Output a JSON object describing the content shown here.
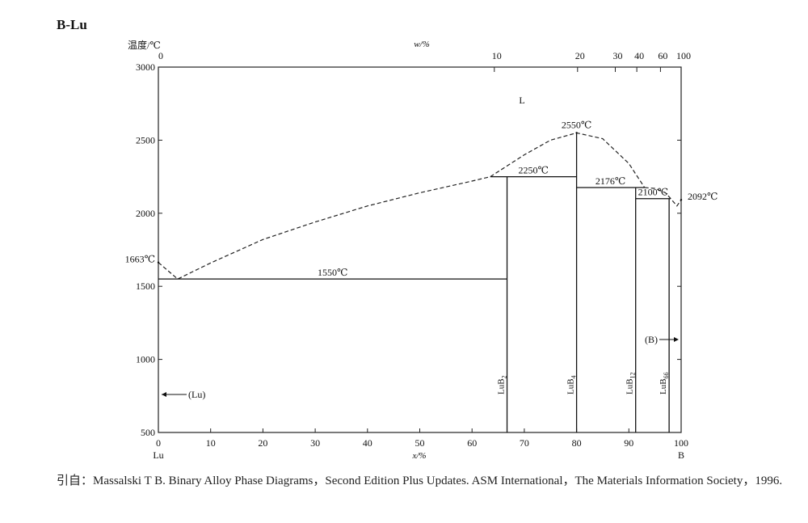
{
  "chart_data": {
    "type": "phase-diagram",
    "title": "B-Lu",
    "ylabel": "温度/℃",
    "xlabel": "x/%",
    "x2label": "w/%",
    "left_element": "Lu",
    "right_element": "B",
    "region_label": "L",
    "xlim": [
      0,
      100
    ],
    "ylim": [
      500,
      3000
    ],
    "xticks": [
      0,
      10,
      20,
      30,
      40,
      50,
      60,
      70,
      80,
      90,
      100
    ],
    "yticks": [
      500,
      1000,
      1500,
      2000,
      2500,
      3000
    ],
    "x2ticks": [
      0,
      10,
      20,
      30,
      40,
      60,
      100
    ],
    "series": [
      {
        "name": "liquidus-lu-side",
        "style": "dashed",
        "x": [
          0,
          3.7,
          10,
          20,
          30,
          40,
          50,
          60,
          63.5
        ],
        "values": [
          1663,
          1550,
          1660,
          1820,
          1940,
          2050,
          2140,
          2220,
          2250
        ]
      },
      {
        "name": "liquidus-lub4",
        "style": "dashed",
        "x": [
          63.5,
          70,
          75,
          80,
          85,
          90,
          93
        ],
        "values": [
          2250,
          2400,
          2500,
          2550,
          2510,
          2340,
          2176
        ]
      },
      {
        "name": "liquidus-b-side",
        "style": "dashed",
        "x": [
          93,
          95,
          97,
          98,
          99.2,
          100
        ],
        "values": [
          2176,
          2170,
          2140,
          2100,
          2050,
          2092
        ]
      }
    ],
    "isotherms": [
      {
        "label": "1550℃",
        "value": 1550,
        "x": [
          0,
          66.7
        ]
      },
      {
        "label": "2250℃",
        "value": 2250,
        "x": [
          63.5,
          80
        ]
      },
      {
        "label": "2176℃",
        "value": 2176,
        "x": [
          80,
          93
        ]
      },
      {
        "label": "2100℃",
        "value": 2100,
        "x": [
          91.3,
          98
        ]
      }
    ],
    "points": [
      {
        "label": "1663℃",
        "x": 0,
        "value": 1663
      },
      {
        "label": "2550℃",
        "x": 80,
        "value": 2550
      },
      {
        "label": "2092℃",
        "x": 100,
        "value": 2092
      }
    ],
    "compounds": [
      {
        "base": "LuB",
        "sub": "2",
        "x": 66.7,
        "top": 2250
      },
      {
        "base": "LuB",
        "sub": "4",
        "x": 80,
        "top": 2550
      },
      {
        "base": "LuB",
        "sub": "12",
        "x": 91.3,
        "top": 2176
      },
      {
        "base": "LuB",
        "sub": "66",
        "x": 97.7,
        "top": 2100
      }
    ],
    "solid_solutions": [
      "(Lu)",
      "(B)"
    ],
    "citation": "引自：Massalski T B. Binary Alloy Phase Diagrams，Second Edition Plus Updates. ASM International，The Materials Information Society，1996."
  }
}
